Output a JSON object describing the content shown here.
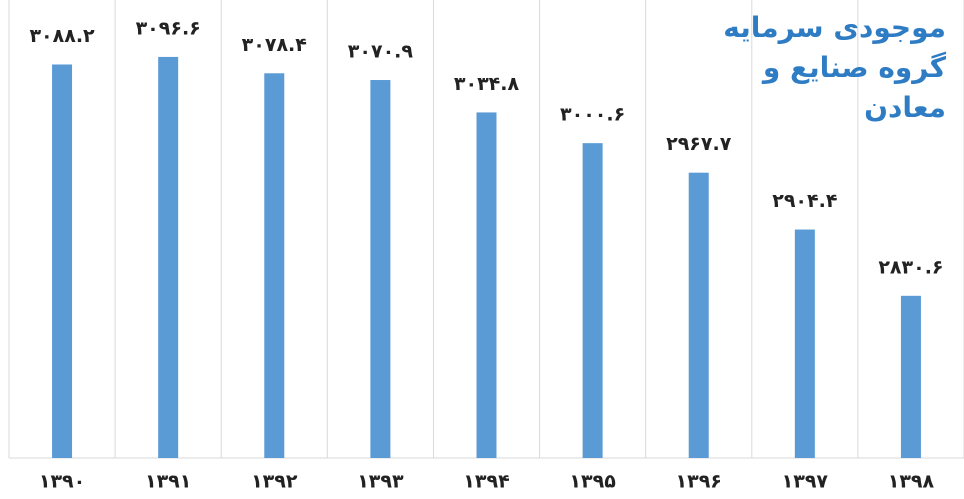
{
  "chart_data": {
    "type": "bar",
    "title": "موجودی سرمایه گروه صنایع و معادن",
    "categories": [
      "۱۳۹۰",
      "۱۳۹۱",
      "۱۳۹۲",
      "۱۳۹۳",
      "۱۳۹۴",
      "۱۳۹۵",
      "۱۳۹۶",
      "۱۳۹۷",
      "۱۳۹۸"
    ],
    "values": [
      3088.2,
      3096.6,
      3078.4,
      3070.9,
      3034.8,
      3000.6,
      2967.7,
      2904.4,
      2830.6
    ],
    "value_labels": [
      "۳۰۸۸.۲",
      "۳۰۹۶.۶",
      "۳۰۷۸.۴",
      "۳۰۷۰.۹",
      "۳۰۳۴.۸",
      "۳۰۰۰.۶",
      "۲۹۶۷.۷",
      "۲۹۰۴.۴",
      "۲۸۳۰.۶"
    ],
    "color": "#5b9bd5",
    "ylim": [
      2650,
      3160
    ]
  }
}
